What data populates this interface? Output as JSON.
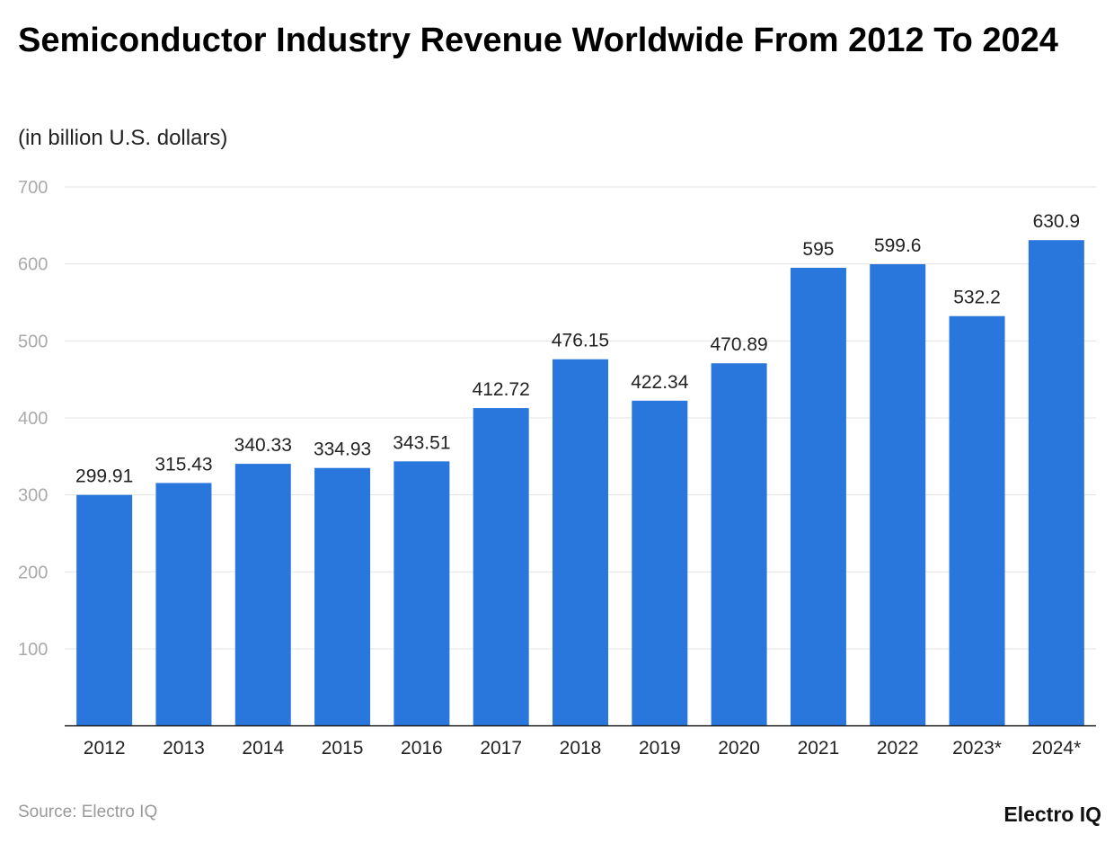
{
  "chart_data": {
    "type": "bar",
    "title": "Semiconductor Industry Revenue Worldwide From 2012 To 2024",
    "subtitle": "(in billion U.S. dollars)",
    "categories": [
      "2012",
      "2013",
      "2014",
      "2015",
      "2016",
      "2017",
      "2018",
      "2019",
      "2020",
      "2021",
      "2022",
      "2023*",
      "2024*"
    ],
    "values": [
      299.91,
      315.43,
      340.33,
      334.93,
      343.51,
      412.72,
      476.15,
      422.34,
      470.89,
      595,
      599.6,
      532.2,
      630.9
    ],
    "value_labels": [
      "299.91",
      "315.43",
      "340.33",
      "334.93",
      "343.51",
      "412.72",
      "476.15",
      "422.34",
      "470.89",
      "595",
      "599.6",
      "532.2",
      "630.9"
    ],
    "ylim": [
      0,
      700
    ],
    "yticks": [
      "100",
      "200",
      "300",
      "400",
      "500",
      "600",
      "700"
    ],
    "grid": true,
    "bar_color": "#2976dd"
  },
  "footer": {
    "source": "Source: Electro IQ",
    "logo": "Electro IQ"
  }
}
